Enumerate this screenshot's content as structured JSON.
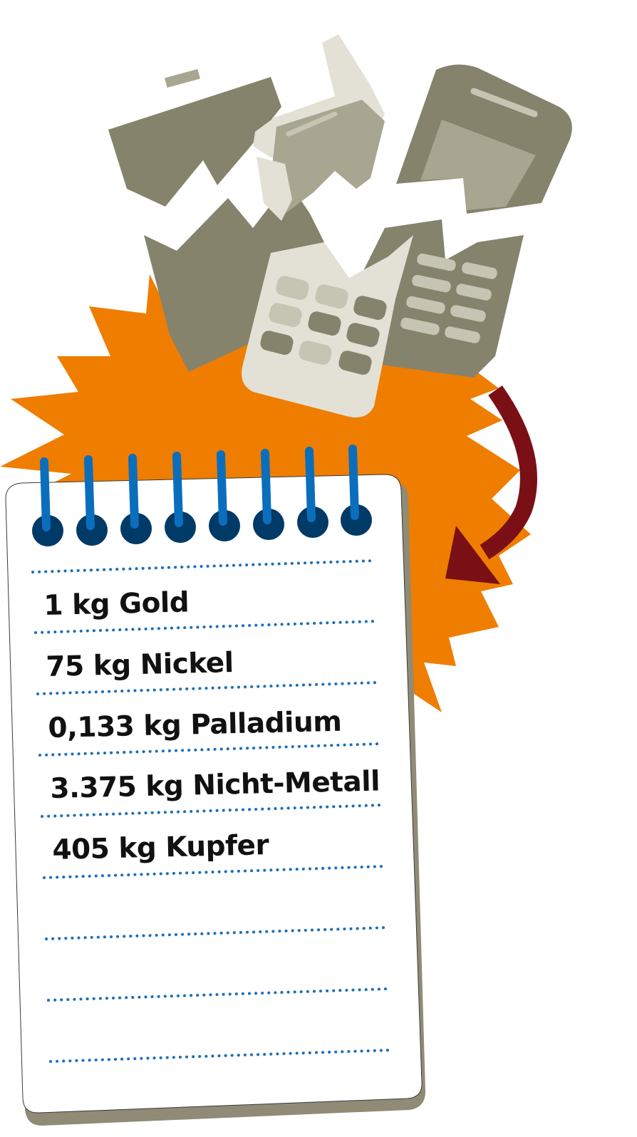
{
  "colors": {
    "burst": "#EF7D00",
    "phone_dark": "#86836C",
    "phone_mid": "#A8A690",
    "phone_light": "#E3E1D5",
    "key": "#C6C4B2",
    "arrow": "#7A1015",
    "spiral": "#0A6EBD",
    "ring": "#003A66",
    "dots": "#1C6FB6",
    "paper": "#FFFFFF",
    "paper_shadow": "#8F8B76",
    "paper_edge": "#3A3A3A"
  },
  "icons": [
    "broken-phones-illustration",
    "explosion-burst",
    "curved-arrow-icon",
    "spiral-notepad"
  ],
  "notepad": {
    "items": [
      "1 kg Gold",
      "75 kg Nickel",
      "0,133 kg Palladium",
      "3.375 kg Nicht-Metall",
      "405 kg Kupfer",
      "",
      "",
      ""
    ]
  }
}
